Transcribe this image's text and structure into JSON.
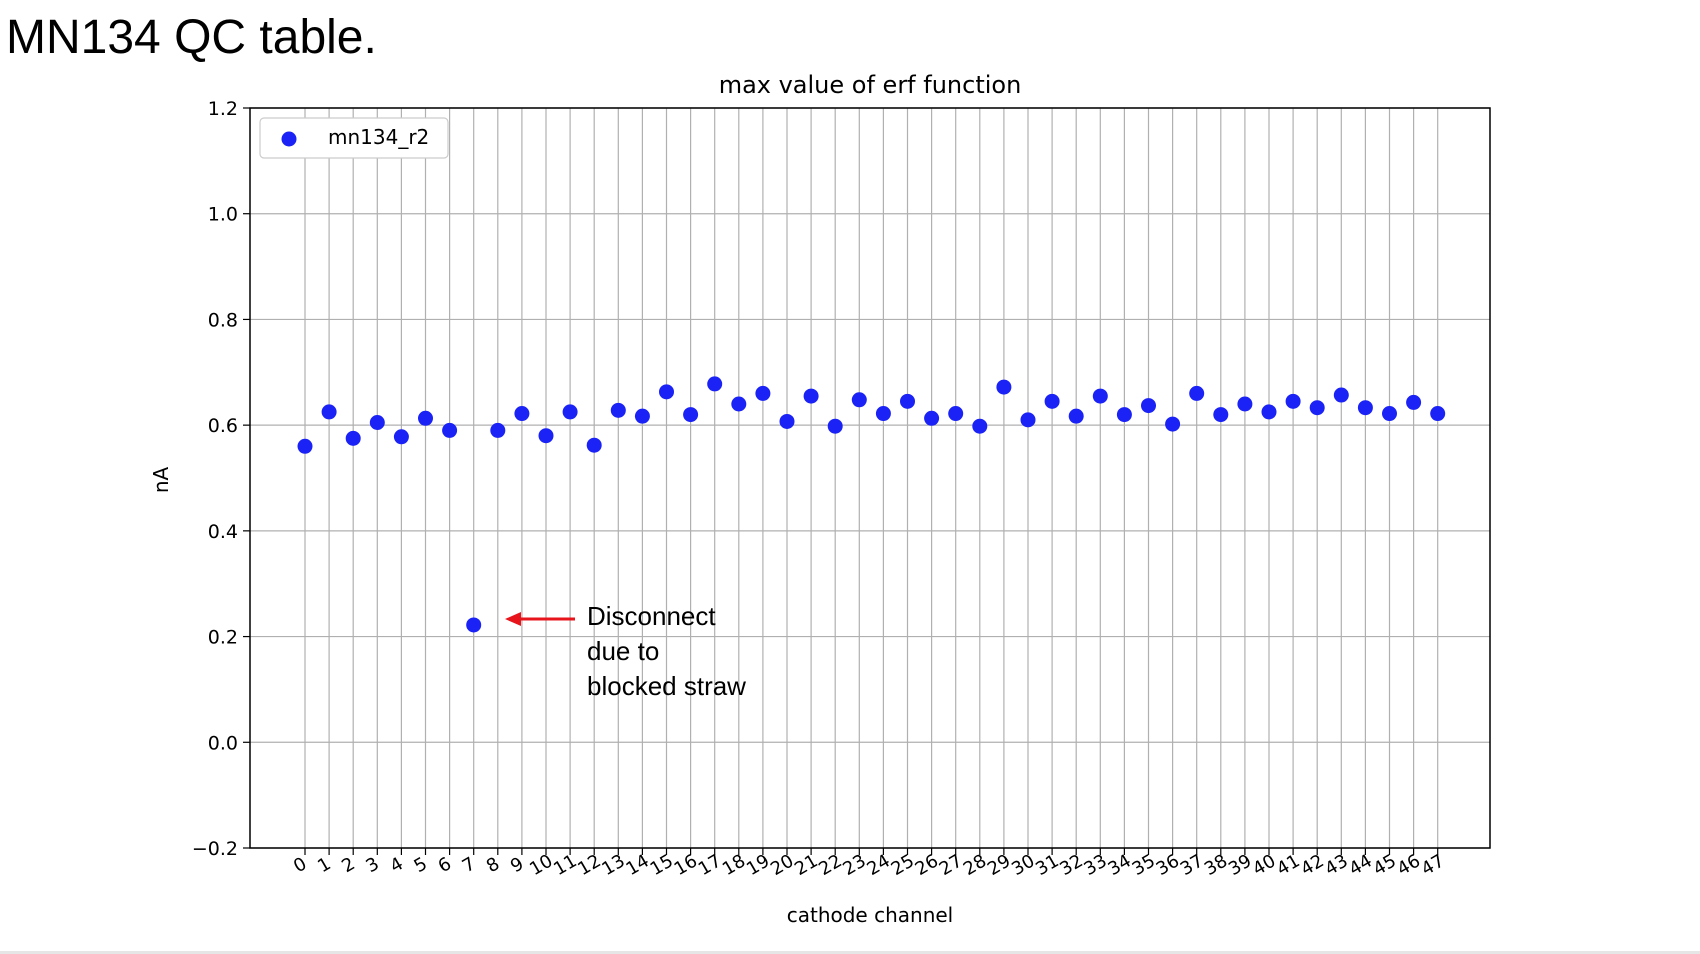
{
  "slide": {
    "title": "MN134 QC table."
  },
  "colors": {
    "marker": "#1a22f5",
    "annotation_arrow": "#e8141c",
    "grid": "#b0b0b0",
    "axes": "#000000"
  },
  "chart_data": {
    "type": "scatter",
    "title": "max value of erf function",
    "xlabel": "cathode channel",
    "ylabel": "nA",
    "ylim": [
      -0.2,
      1.2
    ],
    "yticks": [
      -0.2,
      0.0,
      0.2,
      0.4,
      0.6,
      0.8,
      1.0,
      1.2
    ],
    "ytick_labels": [
      "−0.2",
      "0.0",
      "0.2",
      "0.4",
      "0.6",
      "0.8",
      "1.0",
      "1.2"
    ],
    "x": [
      0,
      1,
      2,
      3,
      4,
      5,
      6,
      7,
      8,
      9,
      10,
      11,
      12,
      13,
      14,
      15,
      16,
      17,
      18,
      19,
      20,
      21,
      22,
      23,
      24,
      25,
      26,
      27,
      28,
      29,
      30,
      31,
      32,
      33,
      34,
      35,
      36,
      37,
      38,
      39,
      40,
      41,
      42,
      43,
      44,
      45,
      46,
      47
    ],
    "series": [
      {
        "name": "mn134_r2",
        "values": [
          0.56,
          0.625,
          0.575,
          0.605,
          0.578,
          0.613,
          0.59,
          0.222,
          0.59,
          0.622,
          0.58,
          0.625,
          0.562,
          0.628,
          0.617,
          0.663,
          0.62,
          0.678,
          0.64,
          0.66,
          0.607,
          0.655,
          0.598,
          0.648,
          0.622,
          0.645,
          0.613,
          0.622,
          0.598,
          0.672,
          0.61,
          0.645,
          0.617,
          0.655,
          0.62,
          0.637,
          0.602,
          0.66,
          0.62,
          0.64,
          0.625,
          0.645,
          0.633,
          0.657,
          0.633,
          0.622,
          0.643,
          0.622
        ]
      }
    ],
    "grid": true,
    "legend_position": "top-left",
    "annotation": {
      "text_lines": [
        "Disconnect",
        "due to",
        "blocked straw"
      ],
      "points_to_channel": 7
    }
  }
}
